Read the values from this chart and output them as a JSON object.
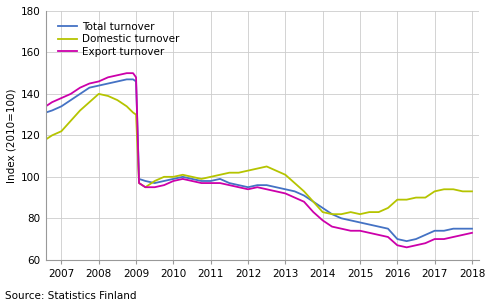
{
  "ylabel": "Index (2010=100)",
  "source": "Source: Statistics Finland",
  "ylim": [
    60,
    180
  ],
  "yticks": [
    60,
    80,
    100,
    120,
    140,
    160,
    180
  ],
  "xlim": [
    2006.58,
    2018.2
  ],
  "xticks": [
    2007,
    2008,
    2009,
    2010,
    2011,
    2012,
    2013,
    2014,
    2015,
    2016,
    2017,
    2018
  ],
  "legend_labels": [
    "Total turnover",
    "Domestic turnover",
    "Export turnover"
  ],
  "colors": {
    "total": "#4472c4",
    "domestic": "#b5c400",
    "export": "#cc00aa"
  },
  "linewidth": 1.3,
  "total_x": [
    2006.58,
    2006.75,
    2007.0,
    2007.25,
    2007.5,
    2007.75,
    2008.0,
    2008.25,
    2008.5,
    2008.75,
    2008.92,
    2009.0,
    2009.08,
    2009.25,
    2009.5,
    2009.75,
    2010.0,
    2010.25,
    2010.5,
    2010.75,
    2011.0,
    2011.25,
    2011.5,
    2011.75,
    2012.0,
    2012.25,
    2012.5,
    2012.75,
    2013.0,
    2013.25,
    2013.5,
    2013.75,
    2014.0,
    2014.25,
    2014.5,
    2014.75,
    2015.0,
    2015.25,
    2015.5,
    2015.75,
    2016.0,
    2016.25,
    2016.5,
    2016.75,
    2017.0,
    2017.25,
    2017.5,
    2017.75,
    2018.0
  ],
  "total_y": [
    131,
    132,
    134,
    137,
    140,
    143,
    144,
    145,
    146,
    147,
    147,
    146,
    99,
    98,
    97,
    98,
    99,
    100,
    99,
    98,
    98,
    99,
    97,
    96,
    95,
    96,
    96,
    95,
    94,
    93,
    91,
    88,
    85,
    82,
    80,
    79,
    78,
    77,
    76,
    75,
    70,
    69,
    70,
    72,
    74,
    74,
    75,
    75,
    75
  ],
  "domestic_x": [
    2006.58,
    2006.75,
    2007.0,
    2007.25,
    2007.5,
    2007.75,
    2008.0,
    2008.25,
    2008.5,
    2008.75,
    2008.92,
    2009.0,
    2009.08,
    2009.25,
    2009.5,
    2009.75,
    2010.0,
    2010.25,
    2010.5,
    2010.75,
    2011.0,
    2011.25,
    2011.5,
    2011.75,
    2012.0,
    2012.25,
    2012.5,
    2012.75,
    2013.0,
    2013.25,
    2013.5,
    2013.75,
    2014.0,
    2014.25,
    2014.5,
    2014.75,
    2015.0,
    2015.25,
    2015.5,
    2015.75,
    2016.0,
    2016.25,
    2016.5,
    2016.75,
    2017.0,
    2017.25,
    2017.5,
    2017.75,
    2018.0
  ],
  "domestic_y": [
    118,
    120,
    122,
    127,
    132,
    136,
    140,
    139,
    137,
    134,
    131,
    130,
    97,
    95,
    98,
    100,
    100,
    101,
    100,
    99,
    100,
    101,
    102,
    102,
    103,
    104,
    105,
    103,
    101,
    97,
    93,
    88,
    83,
    82,
    82,
    83,
    82,
    83,
    83,
    85,
    89,
    89,
    90,
    90,
    93,
    94,
    94,
    93,
    93
  ],
  "export_x": [
    2006.58,
    2006.75,
    2007.0,
    2007.25,
    2007.5,
    2007.75,
    2008.0,
    2008.25,
    2008.5,
    2008.75,
    2008.92,
    2009.0,
    2009.08,
    2009.25,
    2009.5,
    2009.75,
    2010.0,
    2010.25,
    2010.5,
    2010.75,
    2011.0,
    2011.25,
    2011.5,
    2011.75,
    2012.0,
    2012.25,
    2012.5,
    2012.75,
    2013.0,
    2013.25,
    2013.5,
    2013.75,
    2014.0,
    2014.25,
    2014.5,
    2014.75,
    2015.0,
    2015.25,
    2015.5,
    2015.75,
    2016.0,
    2016.25,
    2016.5,
    2016.75,
    2017.0,
    2017.25,
    2017.5,
    2017.75,
    2018.0
  ],
  "export_y": [
    134,
    136,
    138,
    140,
    143,
    145,
    146,
    148,
    149,
    150,
    150,
    148,
    97,
    95,
    95,
    96,
    98,
    99,
    98,
    97,
    97,
    97,
    96,
    95,
    94,
    95,
    94,
    93,
    92,
    90,
    88,
    83,
    79,
    76,
    75,
    74,
    74,
    73,
    72,
    71,
    67,
    66,
    67,
    68,
    70,
    70,
    71,
    72,
    73
  ]
}
